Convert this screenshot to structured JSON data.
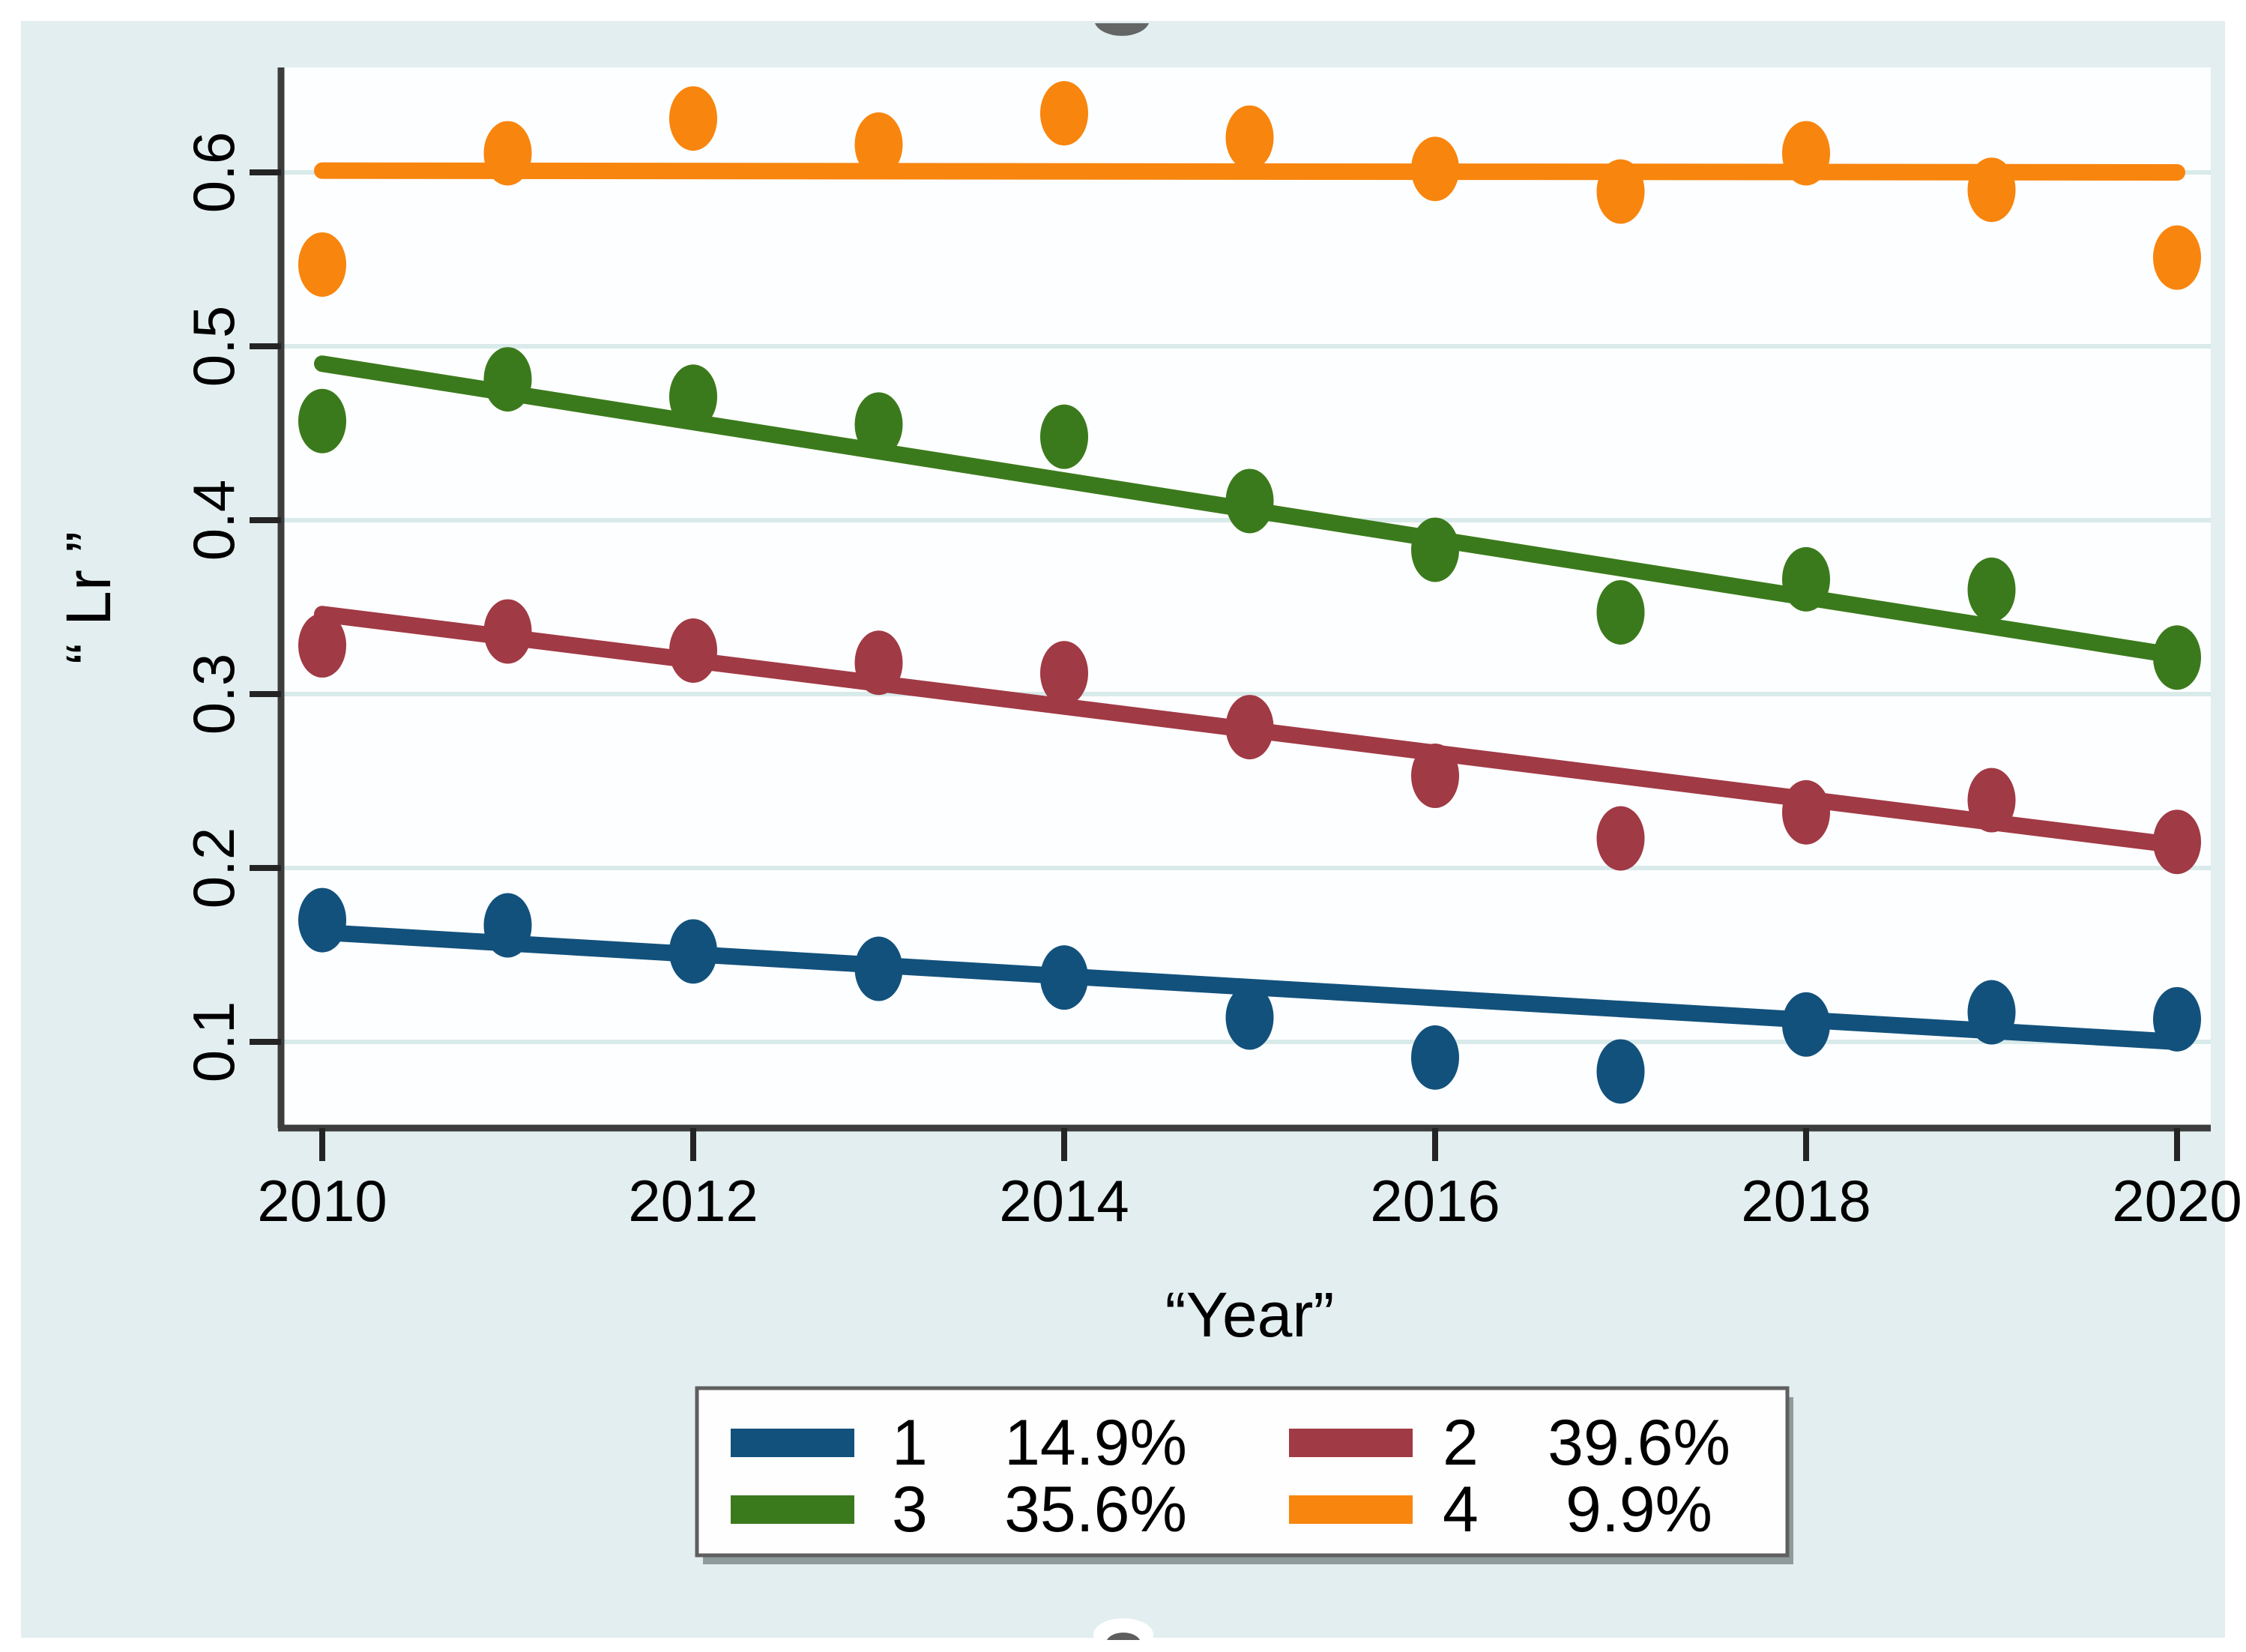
{
  "chart_data": {
    "type": "scatter",
    "title": "",
    "xlabel": "“Year”",
    "ylabel": "“ Lr ”",
    "x": [
      2010,
      2011,
      2012,
      2013,
      2014,
      2015,
      2016,
      2017,
      2018,
      2019,
      2020
    ],
    "xtick_labels": [
      "2010",
      "2012",
      "2014",
      "2016",
      "2018",
      "2020"
    ],
    "xticks": [
      2010,
      2012,
      2014,
      2016,
      2018,
      2020
    ],
    "ytick_labels": [
      "0.1",
      "0.2",
      "0.3",
      "0.4",
      "0.5",
      "0.6"
    ],
    "yticks": [
      0.1,
      0.2,
      0.3,
      0.4,
      0.5,
      0.6
    ],
    "xlim": [
      2009.78,
      2020.18
    ],
    "ylim": [
      0.049,
      0.66
    ],
    "grid": true,
    "legend_position": "bottom-center",
    "series": [
      {
        "name": "1",
        "pct": "14.9%",
        "color": "#12517c",
        "values": [
          0.17,
          0.167,
          0.152,
          0.142,
          0.137,
          0.114,
          0.091,
          0.083,
          0.11,
          0.117,
          0.113
        ],
        "trend_start": 0.163,
        "trend_end": 0.1
      },
      {
        "name": "2",
        "pct": "39.6%",
        "color": "#a03a45",
        "values": [
          0.328,
          0.336,
          0.325,
          0.318,
          0.312,
          0.281,
          0.253,
          0.217,
          0.232,
          0.239,
          0.215
        ],
        "trend_start": 0.346,
        "trend_end": 0.213
      },
      {
        "name": "3",
        "pct": "35.6%",
        "color": "#3b7a1c",
        "values": [
          0.457,
          0.481,
          0.471,
          0.455,
          0.448,
          0.411,
          0.383,
          0.347,
          0.366,
          0.36,
          0.321
        ],
        "trend_start": 0.49,
        "trend_end": 0.322
      },
      {
        "name": "4",
        "pct": "9.9%",
        "color": "#f8850d",
        "values": [
          0.547,
          0.611,
          0.631,
          0.616,
          0.634,
          0.62,
          0.602,
          0.589,
          0.611,
          0.59,
          0.551
        ],
        "trend_start": 0.601,
        "trend_end": 0.6
      }
    ],
    "legend_order": [
      "1",
      "2",
      "3",
      "4"
    ]
  },
  "style_colors": {
    "panel_background": "#e3eef0",
    "plot_background": "#fdfeff",
    "gridline": "#d9eaea",
    "axis_line": "#3d3d3d",
    "tick": "#242424",
    "legend_border": "#5f5f5f",
    "legend_shadow": "#8f9b9b",
    "legend_fill": "#fefefe",
    "crop_artifact": "#4d4d4d"
  }
}
